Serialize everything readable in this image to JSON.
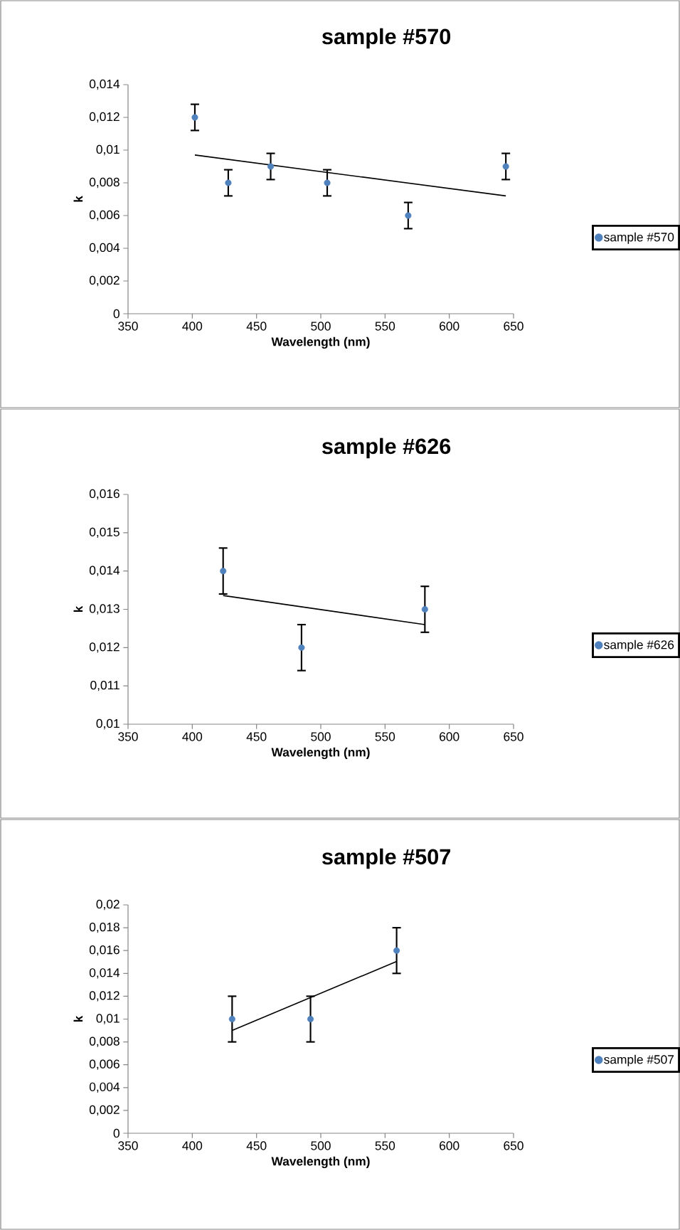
{
  "chart_data": [
    {
      "type": "scatter",
      "title": "sample #570",
      "xlabel": "Wavelength (nm)",
      "ylabel": "k",
      "xlim": [
        350,
        650
      ],
      "ylim": [
        0,
        0.014
      ],
      "xticks": [
        350,
        400,
        450,
        500,
        550,
        600,
        650
      ],
      "yticks": [
        0,
        {
          "value": 0.002,
          "label": "0,002"
        },
        {
          "value": 0.004,
          "label": "0,004"
        },
        {
          "value": 0.006,
          "label": "0,006"
        },
        {
          "value": 0.008,
          "label": "0,008"
        },
        {
          "value": 0.01,
          "label": "0,01"
        },
        {
          "value": 0.012,
          "label": "0,012"
        },
        {
          "value": 0.014,
          "label": "0,014"
        }
      ],
      "legend": "right",
      "series": [
        {
          "name": "sample #570",
          "color": "#4f81bd",
          "marker": "circle",
          "x": [
            402,
            428,
            461,
            505,
            568,
            644
          ],
          "values": [
            0.012,
            0.008,
            0.009,
            0.008,
            0.006,
            0.009
          ],
          "errors": [
            0.0008,
            0.0008,
            0.0008,
            0.0008,
            0.0008,
            0.0008
          ]
        },
        {
          "type": "line",
          "color": "#000000",
          "marker": "none",
          "x": [
            402,
            644
          ],
          "values": [
            0.0097,
            0.0072
          ]
        }
      ]
    },
    {
      "type": "scatter",
      "title": "sample #626",
      "xlabel": "Wavelength (nm)",
      "ylabel": "k",
      "xlim": [
        350,
        650
      ],
      "ylim": [
        0.01,
        0.016
      ],
      "xticks": [
        350,
        400,
        450,
        500,
        550,
        600,
        650
      ],
      "yticks": [
        {
          "value": 0.01,
          "label": "0,01"
        },
        {
          "value": 0.011,
          "label": "0,011"
        },
        {
          "value": 0.012,
          "label": "0,012"
        },
        {
          "value": 0.013,
          "label": "0,013"
        },
        {
          "value": 0.014,
          "label": "0,014"
        },
        {
          "value": 0.015,
          "label": "0,015"
        },
        {
          "value": 0.016,
          "label": "0,016"
        }
      ],
      "legend": "right",
      "series": [
        {
          "name": "sample #626",
          "color": "#4f81bd",
          "marker": "circle",
          "x": [
            424,
            485,
            581
          ],
          "values": [
            0.014,
            0.012,
            0.013
          ],
          "errors": [
            0.0006,
            0.0006,
            0.0006
          ]
        },
        {
          "type": "line",
          "color": "#000000",
          "marker": "none",
          "x": [
            424,
            581
          ],
          "values": [
            0.01336,
            0.0126
          ]
        }
      ]
    },
    {
      "type": "scatter",
      "title": "sample #507",
      "xlabel": "Wavelength (nm)",
      "ylabel": "k",
      "xlim": [
        350,
        650
      ],
      "ylim": [
        0,
        0.02
      ],
      "xticks": [
        350,
        400,
        450,
        500,
        550,
        600,
        650
      ],
      "yticks": [
        0,
        {
          "value": 0.002,
          "label": "0,002"
        },
        {
          "value": 0.004,
          "label": "0,004"
        },
        {
          "value": 0.006,
          "label": "0,006"
        },
        {
          "value": 0.008,
          "label": "0,008"
        },
        {
          "value": 0.01,
          "label": "0,01"
        },
        {
          "value": 0.012,
          "label": "0,012"
        },
        {
          "value": 0.014,
          "label": "0,014"
        },
        {
          "value": 0.016,
          "label": "0,016"
        },
        {
          "value": 0.018,
          "label": "0,018"
        },
        {
          "value": 0.02,
          "label": "0,02"
        }
      ],
      "legend": "right",
      "series": [
        {
          "name": "sample #507",
          "color": "#4f81bd",
          "marker": "circle",
          "x": [
            431,
            492,
            559
          ],
          "values": [
            0.01,
            0.01,
            0.016
          ],
          "errors": [
            0.002,
            0.002,
            0.002
          ]
        },
        {
          "type": "line",
          "color": "#000000",
          "marker": "none",
          "x": [
            431,
            559
          ],
          "values": [
            0.009,
            0.01505
          ]
        }
      ]
    }
  ]
}
